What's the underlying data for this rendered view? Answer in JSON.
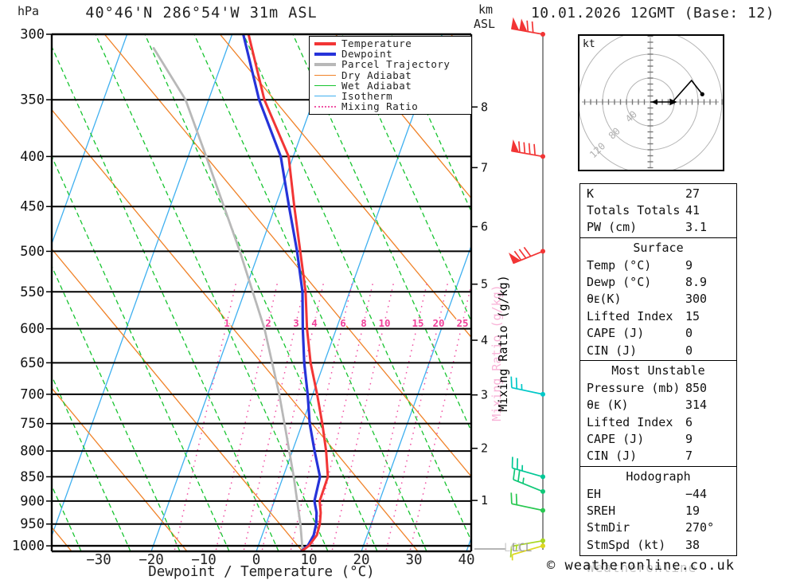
{
  "header": {
    "pressure_unit": "hPa",
    "title": "40°46'N 286°54'W 31m ASL",
    "alt_unit": "km",
    "alt_ref": "ASL",
    "date_title": "10.01.2026 12GMT (Base: 12)"
  },
  "axes": {
    "xlabel": "Dewpoint / Temperature (°C)",
    "mixing_axis_label": "Mixing Ratio (g/kg)",
    "lcl_label": "LCL"
  },
  "legend": {
    "items": [
      {
        "label": "Temperature",
        "color": "#f23535",
        "thickness": 4,
        "dotted": false
      },
      {
        "label": "Dewpoint",
        "color": "#2633d9",
        "thickness": 4,
        "dotted": false
      },
      {
        "label": "Parcel Trajectory",
        "color": "#b8b8b8",
        "thickness": 4,
        "dotted": false
      },
      {
        "label": "Dry Adiabat",
        "color": "#f08228",
        "thickness": 1.6,
        "dotted": false
      },
      {
        "label": "Wet Adiabat",
        "color": "#17c430",
        "thickness": 1.6,
        "dotted": false
      },
      {
        "label": "Isotherm",
        "color": "#3fb0f0",
        "thickness": 1.6,
        "dotted": false
      },
      {
        "label": "Mixing Ratio",
        "color": "#f055a5",
        "thickness": 2,
        "dotted": true
      }
    ]
  },
  "chart_data": {
    "type": "line",
    "subtype": "skewt_logp_sounding",
    "station": "40°46'N 286°54'W 31m ASL",
    "valid_time": "10.01.2026 12GMT (Base: 12)",
    "xlabel": "Dewpoint / Temperature (°C)",
    "x_ticks_c": [
      -30,
      -20,
      -10,
      0,
      10,
      20,
      30,
      40
    ],
    "pressure_ticks_hpa": [
      300,
      350,
      400,
      450,
      500,
      550,
      600,
      650,
      700,
      750,
      800,
      850,
      900,
      950,
      1000
    ],
    "km_ticks": [
      1,
      2,
      3,
      4,
      5,
      6,
      7,
      8
    ],
    "mixing_ratio_lines_gkg": [
      1,
      2,
      3,
      4,
      6,
      8,
      10,
      15,
      20,
      25
    ],
    "profile": {
      "pressure_hpa": [
        1013,
        1000,
        975,
        950,
        925,
        900,
        850,
        800,
        750,
        700,
        650,
        600,
        550,
        500,
        450,
        400,
        350,
        300
      ],
      "temperature_c": [
        9,
        10,
        10.8,
        10.6,
        10,
        9,
        8.9,
        6.8,
        4.2,
        1.2,
        -2.2,
        -5.2,
        -8,
        -11.8,
        -16,
        -20.5,
        -29,
        -36.5
      ],
      "dewpoint_c": [
        8.9,
        9.8,
        10.2,
        9.9,
        9.2,
        8,
        7.4,
        4.6,
        1.8,
        -0.6,
        -3.4,
        -6,
        -8.6,
        -12.4,
        -17,
        -22,
        -30,
        -37.5
      ]
    },
    "parcel": {
      "pressure_hpa": [
        1013,
        950,
        850,
        750,
        700,
        600,
        500,
        400,
        350,
        310
      ],
      "temperature_c": [
        9.2,
        6.9,
        2.4,
        -3,
        -6,
        -13.3,
        -23.3,
        -36.2,
        -44,
        -53.6
      ]
    },
    "wind_barbs": [
      {
        "pressure_hpa": 300,
        "speed_kt": 120,
        "color": "#f23535",
        "pennants": 2,
        "full": 2,
        "half": 0,
        "angle": 10,
        "feather_dir": 1
      },
      {
        "pressure_hpa": 400,
        "speed_kt": 90,
        "color": "#f23535",
        "pennants": 1,
        "full": 4,
        "half": 0,
        "angle": 10,
        "feather_dir": 1
      },
      {
        "pressure_hpa": 500,
        "speed_kt": 80,
        "color": "#f23535",
        "pennants": 1,
        "full": 3,
        "half": 0,
        "angle": -22,
        "feather_dir": 1
      },
      {
        "pressure_hpa": 700,
        "speed_kt": 25,
        "color": "#00c8c8",
        "pennants": 0,
        "full": 2,
        "half": 1,
        "angle": 12,
        "feather_dir": 1
      },
      {
        "pressure_hpa": 850,
        "speed_kt": 25,
        "color": "#00c896",
        "pennants": 0,
        "full": 2,
        "half": 1,
        "angle": 16,
        "feather_dir": 1
      },
      {
        "pressure_hpa": 880,
        "speed_kt": 25,
        "color": "#10c878",
        "pennants": 0,
        "full": 2,
        "half": 1,
        "angle": 22,
        "feather_dir": 1
      },
      {
        "pressure_hpa": 920,
        "speed_kt": 20,
        "color": "#28c850",
        "pennants": 0,
        "full": 2,
        "half": 0,
        "angle": 12,
        "feather_dir": 1
      },
      {
        "pressure_hpa": 988,
        "speed_kt": 15,
        "color": "#a8d820",
        "pennants": 0,
        "full": 1,
        "half": 1,
        "angle": -10,
        "feather_dir": -1
      },
      {
        "pressure_hpa": 1000,
        "speed_kt": 5,
        "color": "#ddd820",
        "pennants": 0,
        "full": 0,
        "half": 1,
        "angle": -16,
        "feather_dir": -1
      }
    ],
    "hodograph": {
      "unit": "kt",
      "rings_kt": [
        40,
        80,
        120
      ],
      "storm_dir_deg": 270,
      "storm_speed_kt": 38,
      "trace_points_kt": [
        [
          0,
          0
        ],
        [
          37,
          0
        ],
        [
          69,
          36
        ],
        [
          87,
          13
        ]
      ]
    }
  },
  "stats": {
    "boxes": [
      {
        "title": "",
        "rows": [
          [
            "K",
            "27"
          ],
          [
            "Totals Totals",
            "41"
          ],
          [
            "PW (cm)",
            "3.1"
          ]
        ]
      },
      {
        "title": "Surface",
        "rows": [
          [
            "Temp (°C)",
            "9"
          ],
          [
            "Dewp (°C)",
            "8.9"
          ],
          [
            "θᴇ(K)",
            "300"
          ],
          [
            "Lifted Index",
            "15"
          ],
          [
            "CAPE (J)",
            "0"
          ],
          [
            "CIN (J)",
            "0"
          ]
        ]
      },
      {
        "title": "Most Unstable",
        "rows": [
          [
            "Pressure (mb)",
            "850"
          ],
          [
            "θᴇ (K)",
            "314"
          ],
          [
            "Lifted Index",
            "6"
          ],
          [
            "CAPE (J)",
            "9"
          ],
          [
            "CIN (J)",
            "7"
          ]
        ]
      },
      {
        "title": "Hodograph",
        "rows": [
          [
            "EH",
            "−44"
          ],
          [
            "SREH",
            "19"
          ],
          [
            "StmDir",
            "270°"
          ],
          [
            "StmSpd (kt)",
            "38"
          ]
        ]
      }
    ]
  },
  "footer": {
    "copyright": "© weatheronline.co.uk",
    "copyright_ghost": "Weatheronline"
  }
}
